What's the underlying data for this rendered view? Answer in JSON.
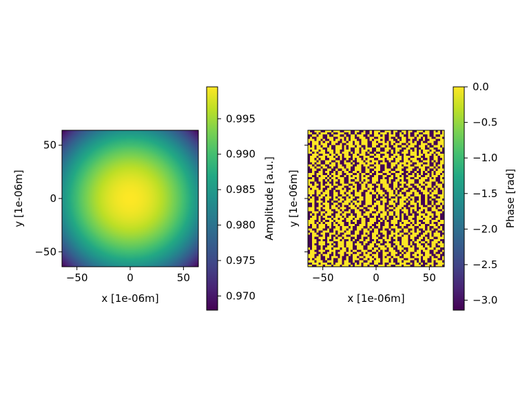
{
  "chart_data": [
    {
      "type": "heatmap",
      "field": "amplitude",
      "xlabel": "x [1e-06m]",
      "ylabel": "y [1e-06m]",
      "xlim": [
        -64,
        64
      ],
      "ylim": [
        -64,
        64
      ],
      "xticks": [
        -50,
        0,
        50
      ],
      "yticks": [
        -50,
        0,
        50
      ],
      "xtick_labels": [
        "−50",
        "0",
        "50"
      ],
      "ytick_labels": [
        "−50",
        "0",
        "50"
      ],
      "colormap": "viridis",
      "pattern": "radial falloff from center: maximum at (0,0), minimum at corners",
      "center_value": 0.9995,
      "corner_value": 0.968,
      "colorbar": {
        "label": "Amplitude [a.u.]",
        "vmin": 0.968,
        "vmax": 0.9995,
        "ticks": [
          0.97,
          0.975,
          0.98,
          0.985,
          0.99,
          0.995
        ],
        "tick_labels": [
          "0.970",
          "0.975",
          "0.980",
          "0.985",
          "0.990",
          "0.995"
        ]
      }
    },
    {
      "type": "heatmap",
      "field": "phase",
      "xlabel": "x [1e-06m]",
      "ylabel": "y [1e-06m]",
      "xlim": [
        -64,
        64
      ],
      "ylim": [
        -64,
        64
      ],
      "xticks": [
        -50,
        0,
        50
      ],
      "yticks": [
        -50,
        0,
        50
      ],
      "xtick_labels": [
        "−50",
        "0",
        "50"
      ],
      "ytick_labels": [],
      "colormap": "viridis",
      "pattern": "pixelated random two-level field, values near 0 (yellow) or near −π (purple)",
      "levels": [
        0.0,
        -3.14
      ],
      "colorbar": {
        "label": "Phase [rad]",
        "vmin": -3.14,
        "vmax": 0.0,
        "ticks": [
          0.0,
          -0.5,
          -1.0,
          -1.5,
          -2.0,
          -2.5,
          -3.0
        ],
        "tick_labels": [
          "0.0",
          "−0.5",
          "−1.0",
          "−1.5",
          "−2.0",
          "−2.5",
          "−3.0"
        ]
      }
    }
  ]
}
